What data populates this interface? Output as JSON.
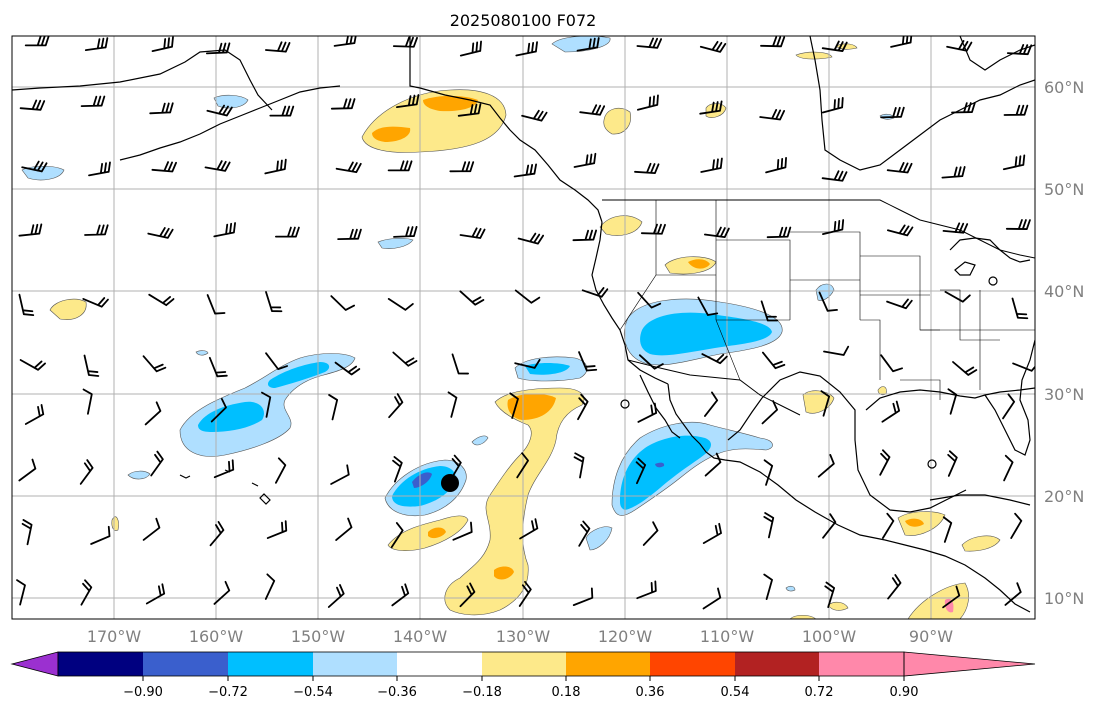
{
  "title": "2025080100 F072",
  "lat_labels": [
    "60°N",
    "50°N",
    "40°N",
    "30°N",
    "20°N",
    "10°N"
  ],
  "lon_labels": [
    "170°W",
    "160°W",
    "150°W",
    "140°W",
    "130°W",
    "120°W",
    "110°W",
    "100°W",
    "90°W"
  ],
  "colorbar": {
    "colors": [
      "#9b30d0",
      "#000080",
      "#3a5fcd",
      "#00bfff",
      "#afdfff",
      "#ffffff",
      "#fde98a",
      "#ffa500",
      "#ff4500",
      "#b22222",
      "#ff88aa"
    ],
    "tick_labels": [
      "−0.90",
      "−0.72",
      "−0.54",
      "−0.36",
      "−0.18",
      "0.18",
      "0.36",
      "0.54",
      "0.72",
      "0.90"
    ]
  },
  "colors": {
    "grid": "#b0b0b0",
    "coast": "#000000",
    "light_blue": "#afdfff",
    "blue": "#00bfff",
    "med_blue": "#3a5fcd",
    "light_yellow": "#fde98a",
    "orange": "#ffa500"
  }
}
